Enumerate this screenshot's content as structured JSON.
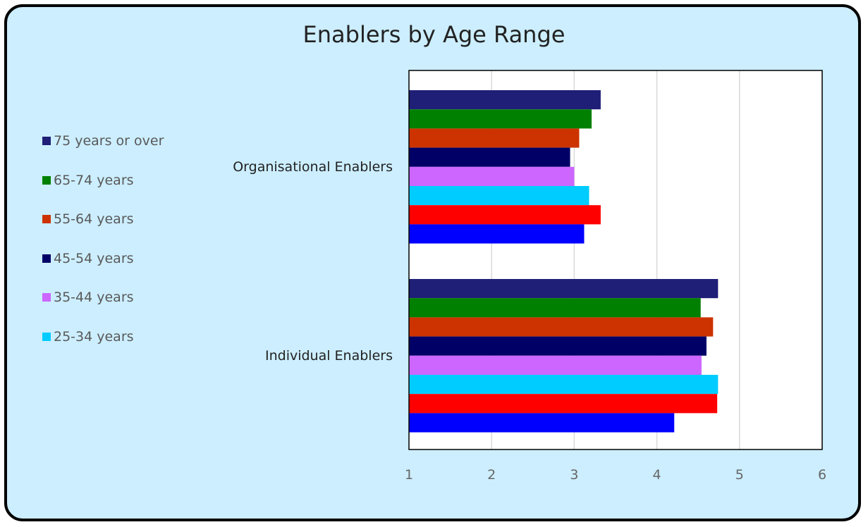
{
  "chart_data": {
    "type": "bar",
    "orientation": "horizontal",
    "title": "Enablers by Age Range",
    "categories": [
      "Organisational Enablers",
      "Individual Enablers"
    ],
    "xlim": [
      1,
      6
    ],
    "xticks": [
      "1",
      "2",
      "3",
      "4",
      "5",
      "6"
    ],
    "grid": true,
    "legend_position": "left",
    "series": [
      {
        "name": "75 years or over",
        "color": "#1f1f77",
        "values": [
          3.32,
          4.74
        ]
      },
      {
        "name": "65-74 years",
        "color": "#008000",
        "values": [
          3.21,
          4.53
        ]
      },
      {
        "name": "55-64 years",
        "color": "#cc3300",
        "values": [
          3.06,
          4.68
        ]
      },
      {
        "name": "45-54 years",
        "color": "#000066",
        "values": [
          2.95,
          4.6
        ]
      },
      {
        "name": "35-44 years",
        "color": "#cc66ff",
        "values": [
          3.0,
          4.54
        ]
      },
      {
        "name": "25-34 years",
        "color": "#00ccff",
        "values": [
          3.18,
          4.74
        ]
      },
      {
        "color": "#ff0000",
        "values": [
          3.32,
          4.73
        ]
      },
      {
        "color": "#0000ff",
        "values": [
          3.12,
          4.21
        ]
      }
    ]
  }
}
